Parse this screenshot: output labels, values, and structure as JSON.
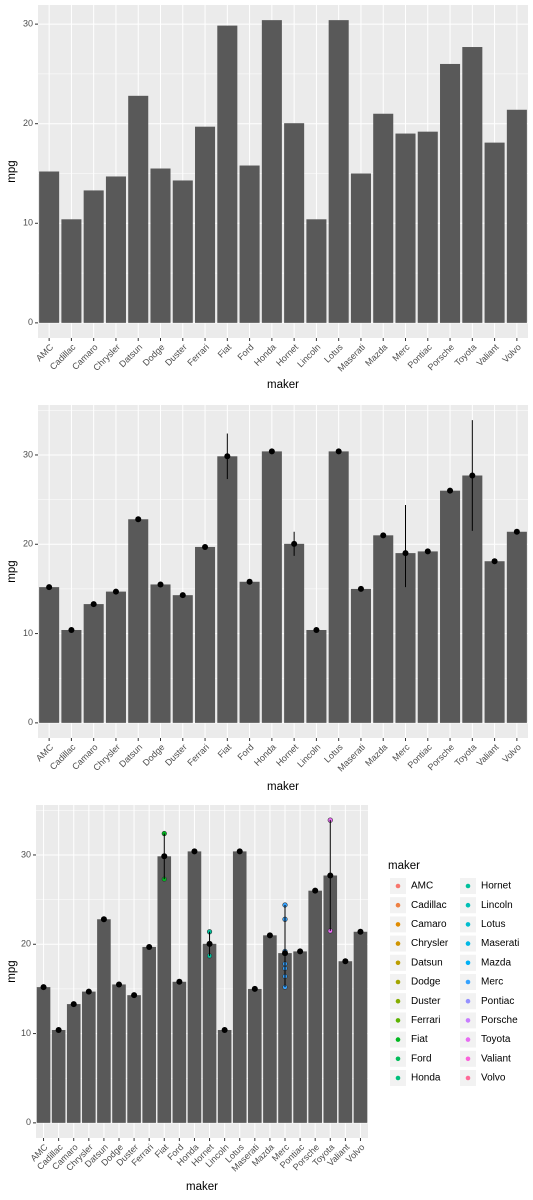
{
  "chart_data": [
    {
      "type": "bar",
      "xlabel": "maker",
      "ylabel": "mpg",
      "categories": [
        "AMC",
        "Cadillac",
        "Camaro",
        "Chrysler",
        "Datsun",
        "Dodge",
        "Duster",
        "Ferrari",
        "Fiat",
        "Ford",
        "Honda",
        "Hornet",
        "Lincoln",
        "Lotus",
        "Maserati",
        "Mazda",
        "Merc",
        "Pontiac",
        "Porsche",
        "Toyota",
        "Valiant",
        "Volvo"
      ],
      "values": [
        15.2,
        10.4,
        13.3,
        14.7,
        22.8,
        15.5,
        14.3,
        19.7,
        29.85,
        15.8,
        30.4,
        20.05,
        10.4,
        30.4,
        15.0,
        21.0,
        19.01,
        19.2,
        26.0,
        27.7,
        18.1,
        21.4
      ],
      "color": "#595959",
      "ylim": [
        -1.52,
        31.92
      ],
      "yticks": [
        0,
        10,
        20,
        30
      ],
      "yminor": [
        5,
        15,
        25
      ],
      "grid": true
    },
    {
      "type": "bar",
      "xlabel": "maker",
      "ylabel": "mpg",
      "categories": [
        "AMC",
        "Cadillac",
        "Camaro",
        "Chrysler",
        "Datsun",
        "Dodge",
        "Duster",
        "Ferrari",
        "Fiat",
        "Ford",
        "Honda",
        "Hornet",
        "Lincoln",
        "Lotus",
        "Maserati",
        "Mazda",
        "Merc",
        "Pontiac",
        "Porsche",
        "Toyota",
        "Valiant",
        "Volvo"
      ],
      "values": [
        15.2,
        10.4,
        13.3,
        14.7,
        22.8,
        15.5,
        14.3,
        19.7,
        29.85,
        15.8,
        30.4,
        20.05,
        10.4,
        30.4,
        15.0,
        21.0,
        19.01,
        19.2,
        26.0,
        27.7,
        18.1,
        21.4
      ],
      "ymin": [
        15.2,
        10.4,
        13.3,
        14.7,
        22.8,
        15.5,
        14.3,
        19.7,
        27.3,
        15.8,
        30.4,
        18.7,
        10.4,
        30.4,
        15.0,
        21.0,
        15.2,
        19.2,
        26.0,
        21.5,
        18.1,
        21.4
      ],
      "ymax": [
        15.2,
        10.4,
        13.3,
        14.7,
        22.8,
        15.5,
        14.3,
        19.7,
        32.4,
        15.8,
        30.4,
        21.4,
        10.4,
        30.4,
        15.0,
        21.0,
        24.4,
        19.2,
        26.0,
        33.9,
        18.1,
        21.4
      ],
      "color": "#595959",
      "ylim": [
        -1.695,
        35.595
      ],
      "yticks": [
        0,
        10,
        20,
        30
      ],
      "yminor": [
        5,
        15,
        25,
        35
      ],
      "grid": true
    },
    {
      "type": "bar",
      "xlabel": "maker",
      "ylabel": "mpg",
      "legend_title": "maker",
      "categories": [
        "AMC",
        "Cadillac",
        "Camaro",
        "Chrysler",
        "Datsun",
        "Dodge",
        "Duster",
        "Ferrari",
        "Fiat",
        "Ford",
        "Honda",
        "Hornet",
        "Lincoln",
        "Lotus",
        "Maserati",
        "Mazda",
        "Merc",
        "Pontiac",
        "Porsche",
        "Toyota",
        "Valiant",
        "Volvo"
      ],
      "values": [
        15.2,
        10.4,
        13.3,
        14.7,
        22.8,
        15.5,
        14.3,
        19.7,
        29.85,
        15.8,
        30.4,
        20.05,
        10.4,
        30.4,
        15.0,
        21.0,
        19.01,
        19.2,
        26.0,
        27.7,
        18.1,
        21.4
      ],
      "ymin": [
        15.2,
        10.4,
        13.3,
        14.7,
        22.8,
        15.5,
        14.3,
        19.7,
        27.3,
        15.8,
        30.4,
        18.7,
        10.4,
        30.4,
        15.0,
        21.0,
        15.2,
        19.2,
        26.0,
        21.5,
        18.1,
        21.4
      ],
      "ymax": [
        15.2,
        10.4,
        13.3,
        14.7,
        22.8,
        15.5,
        14.3,
        19.7,
        32.4,
        15.8,
        30.4,
        21.4,
        10.4,
        30.4,
        15.0,
        21.0,
        24.4,
        19.2,
        26.0,
        33.9,
        18.1,
        21.4
      ],
      "points": [
        [
          15.2
        ],
        [
          10.4
        ],
        [
          13.3
        ],
        [
          14.7
        ],
        [
          22.8
        ],
        [
          15.5
        ],
        [
          14.3
        ],
        [
          19.7
        ],
        [
          32.4,
          27.3
        ],
        [
          15.8
        ],
        [
          30.4
        ],
        [
          21.4,
          18.7
        ],
        [
          10.4
        ],
        [
          30.4
        ],
        [
          15.0
        ],
        [
          21.0,
          21.0
        ],
        [
          24.4,
          22.8,
          19.2,
          17.8,
          16.4,
          17.3,
          15.2
        ],
        [
          19.2
        ],
        [
          26.0
        ],
        [
          33.9,
          21.5
        ],
        [
          18.1
        ],
        [
          21.4
        ]
      ],
      "colors": [
        "#F8766D",
        "#EE8043",
        "#E08B00",
        "#CF9400",
        "#BB9D00",
        "#A3A500",
        "#85AD00",
        "#5BB300",
        "#00B81F",
        "#00BC59",
        "#00BF7D",
        "#00C09B",
        "#00C0B6",
        "#00BDCF",
        "#00B8E5",
        "#00B0F6",
        "#35A2FF",
        "#9590FF",
        "#C77CFF",
        "#E76BF3",
        "#FA62DB",
        "#FF6A98"
      ],
      "color": "#595959",
      "ylim": [
        -1.695,
        35.595
      ],
      "yticks": [
        0,
        10,
        20,
        30
      ],
      "yminor": [
        5,
        15,
        25,
        35
      ],
      "grid": true
    }
  ]
}
